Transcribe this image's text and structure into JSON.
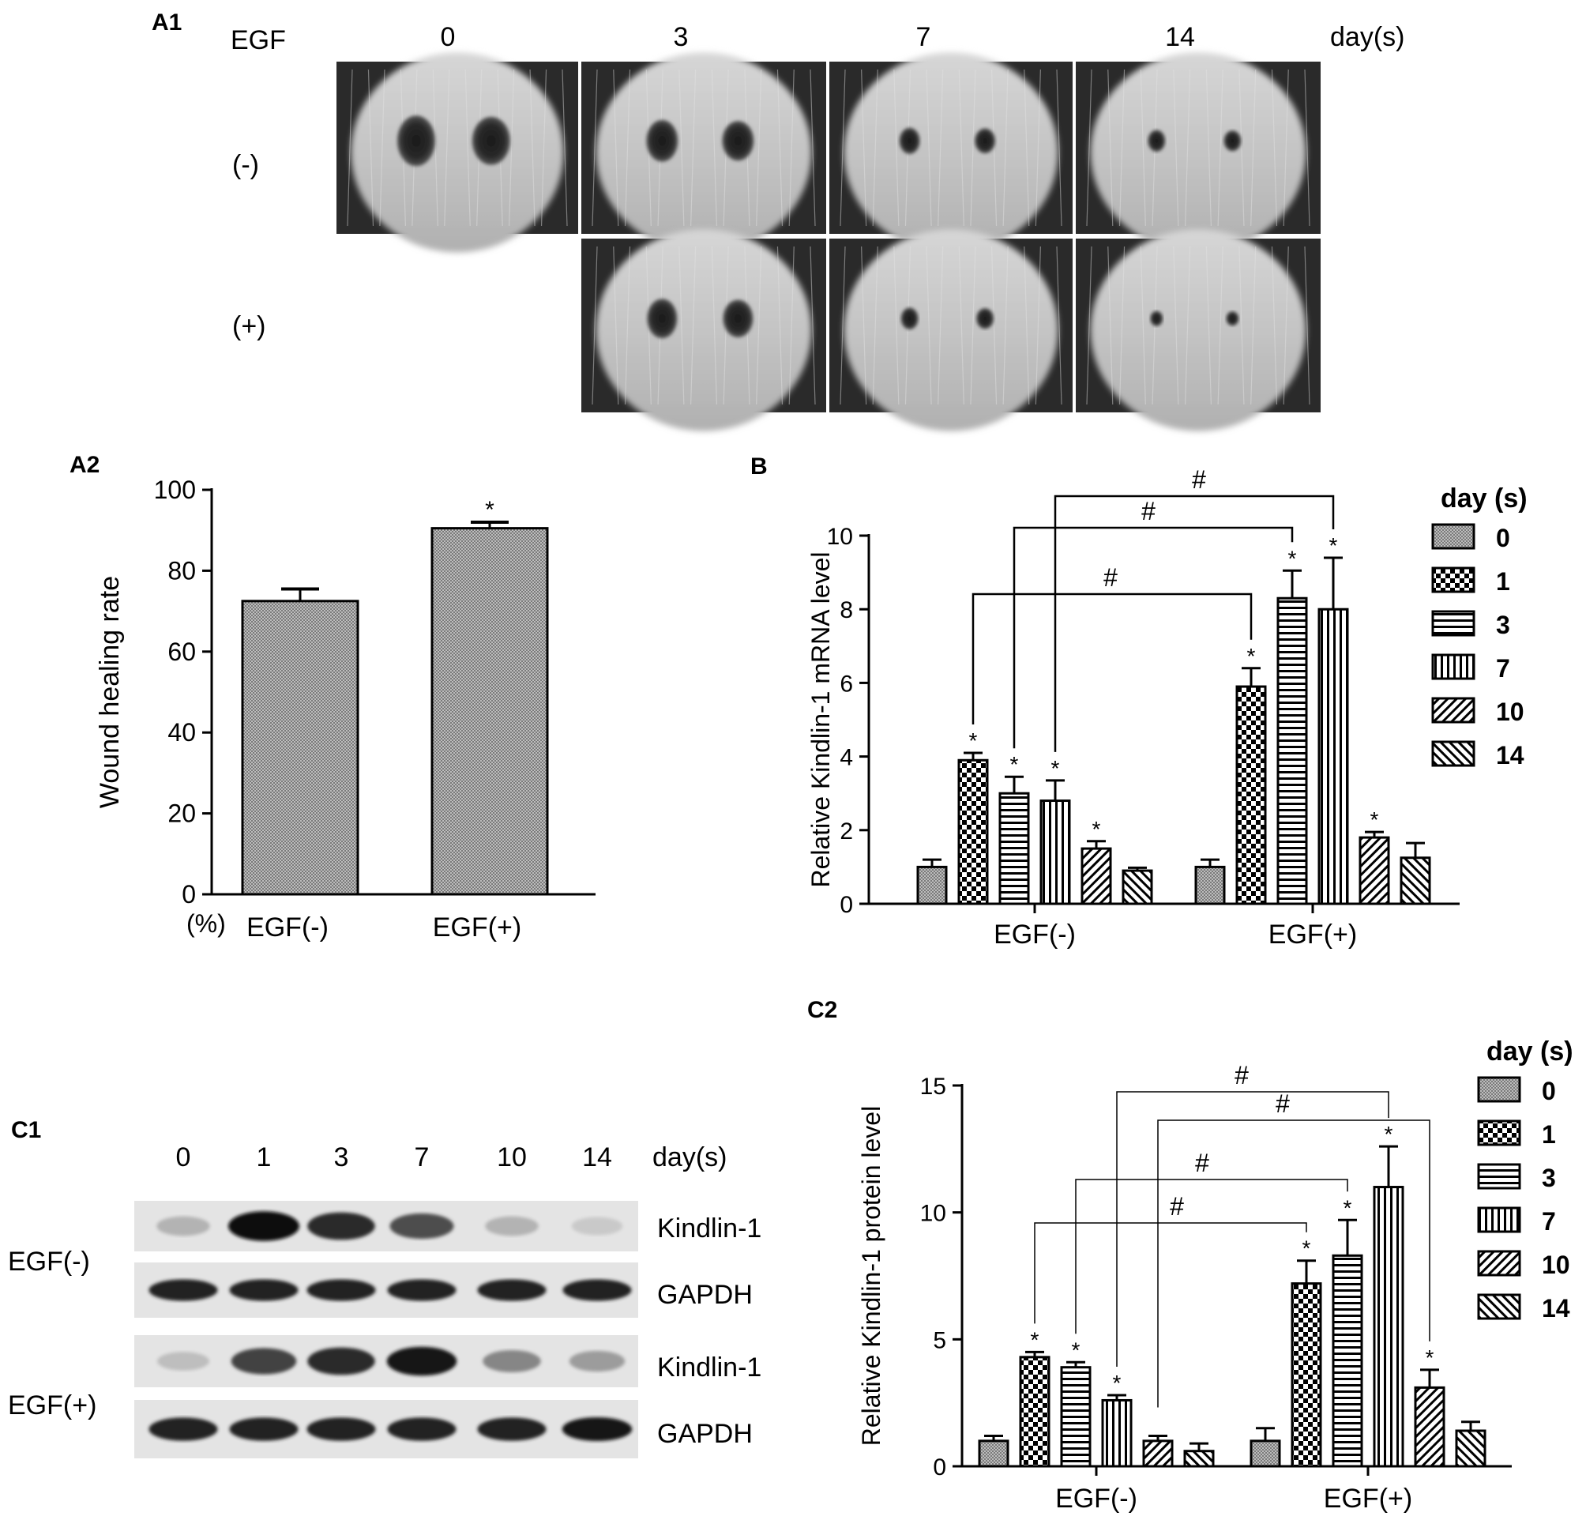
{
  "panels": {
    "a1": "A1",
    "a2": "A2",
    "b": "B",
    "c1": "C1",
    "c2": "C2"
  },
  "photos": {
    "header_label": "EGF",
    "days": [
      "0",
      "3",
      "7",
      "14"
    ],
    "unit_label": "day(s)",
    "rows": [
      "(-)",
      "(+)"
    ]
  },
  "blot": {
    "lanes": [
      "0",
      "1",
      "3",
      "7",
      "10",
      "14"
    ],
    "unit_label": "day(s)",
    "groups": [
      "EGF(-)",
      "EGF(+)"
    ],
    "bands": [
      "Kindlin-1",
      "GAPDH",
      "Kindlin-1",
      "GAPDH"
    ],
    "intensity": {
      "egf_minus_kindlin": [
        0.25,
        1.0,
        0.85,
        0.7,
        0.25,
        0.15
      ],
      "egf_minus_gapdh": [
        0.9,
        0.9,
        0.9,
        0.9,
        0.9,
        0.9
      ],
      "egf_plus_kindlin": [
        0.2,
        0.75,
        0.85,
        0.95,
        0.45,
        0.35
      ],
      "egf_plus_gapdh": [
        0.9,
        0.9,
        0.9,
        0.9,
        0.9,
        0.95
      ]
    }
  },
  "chart_data": [
    {
      "id": "A2",
      "type": "bar",
      "categories": [
        "EGF(-)",
        "EGF(+)"
      ],
      "values": [
        72.5,
        90.5
      ],
      "errors": [
        3,
        1.5
      ],
      "significance": [
        "",
        "*"
      ],
      "xlabel": "",
      "ylabel": "Wound healing rate",
      "unit_label": "(%)",
      "ylim": [
        0,
        100
      ],
      "yticks": [
        0,
        20,
        40,
        60,
        80,
        100
      ]
    },
    {
      "id": "B",
      "type": "bar",
      "categories": [
        "EGF(-)",
        "EGF(+)"
      ],
      "series": [
        {
          "name": "0",
          "values": [
            1.0,
            1.0
          ],
          "errors": [
            0.2,
            0.2
          ],
          "sig": [
            "",
            ""
          ]
        },
        {
          "name": "1",
          "values": [
            3.9,
            5.9
          ],
          "errors": [
            0.2,
            0.5
          ],
          "sig": [
            "*",
            "*"
          ]
        },
        {
          "name": "3",
          "values": [
            3.0,
            8.3
          ],
          "errors": [
            0.45,
            0.75
          ],
          "sig": [
            "*",
            "*"
          ]
        },
        {
          "name": "7",
          "values": [
            2.8,
            8.0
          ],
          "errors": [
            0.55,
            1.4
          ],
          "sig": [
            "*",
            "*"
          ]
        },
        {
          "name": "10",
          "values": [
            1.5,
            1.8
          ],
          "errors": [
            0.2,
            0.15
          ],
          "sig": [
            "*",
            "*"
          ]
        },
        {
          "name": "14",
          "values": [
            0.9,
            1.25
          ],
          "errors": [
            0.08,
            0.4
          ],
          "sig": [
            "",
            ""
          ]
        }
      ],
      "comparisons": [
        {
          "from": [
            0,
            1
          ],
          "to": [
            1,
            1
          ],
          "label": "#"
        },
        {
          "from": [
            0,
            2
          ],
          "to": [
            1,
            2
          ],
          "label": "#"
        },
        {
          "from": [
            0,
            3
          ],
          "to": [
            1,
            3
          ],
          "label": "#"
        }
      ],
      "ylabel": "Relative Kindlin-1 mRNA  level",
      "ylim": [
        0,
        10
      ],
      "yticks": [
        0,
        2,
        4,
        6,
        8,
        10
      ],
      "legend_title": "day (s)",
      "legend_position": "right"
    },
    {
      "id": "C2",
      "type": "bar",
      "categories": [
        "EGF(-)",
        "EGF(+)"
      ],
      "series": [
        {
          "name": "0",
          "values": [
            1.0,
            1.0
          ],
          "errors": [
            0.2,
            0.5
          ],
          "sig": [
            "",
            ""
          ]
        },
        {
          "name": "1",
          "values": [
            4.3,
            7.2
          ],
          "errors": [
            0.2,
            0.9
          ],
          "sig": [
            "*",
            "*"
          ]
        },
        {
          "name": "3",
          "values": [
            3.9,
            8.3
          ],
          "errors": [
            0.2,
            1.4
          ],
          "sig": [
            "*",
            "*"
          ]
        },
        {
          "name": "7",
          "values": [
            2.6,
            11.0
          ],
          "errors": [
            0.2,
            1.6
          ],
          "sig": [
            "*",
            "*"
          ]
        },
        {
          "name": "10",
          "values": [
            1.0,
            3.1
          ],
          "errors": [
            0.2,
            0.7
          ],
          "sig": [
            "",
            "*"
          ]
        },
        {
          "name": "14",
          "values": [
            0.6,
            1.4
          ],
          "errors": [
            0.3,
            0.35
          ],
          "sig": [
            "",
            ""
          ]
        }
      ],
      "comparisons": [
        {
          "from": [
            0,
            1
          ],
          "to": [
            1,
            1
          ],
          "label": "#"
        },
        {
          "from": [
            0,
            2
          ],
          "to": [
            1,
            2
          ],
          "label": "#"
        },
        {
          "from": [
            0,
            4
          ],
          "to": [
            1,
            4
          ],
          "label": "#"
        },
        {
          "from": [
            0,
            3
          ],
          "to": [
            1,
            3
          ],
          "label": "#"
        }
      ],
      "ylabel": "Relative Kindlin-1 protein level",
      "ylim": [
        0,
        15
      ],
      "yticks": [
        0,
        5,
        10,
        15
      ],
      "legend_title": "day (s)",
      "legend_position": "right"
    }
  ]
}
